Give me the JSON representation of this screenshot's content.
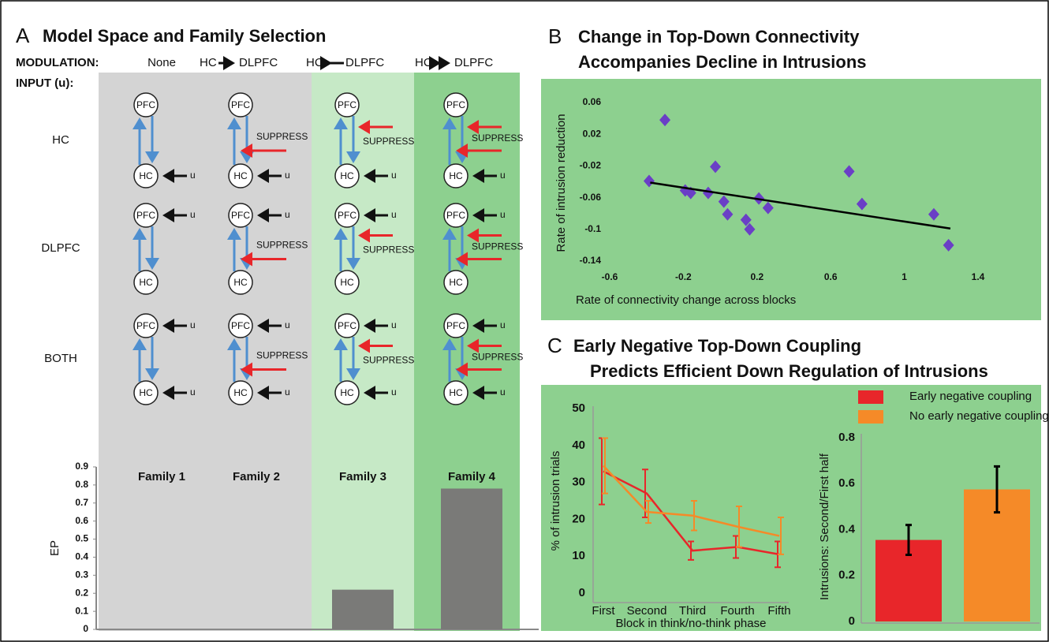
{
  "panel_a": {
    "letter": "A",
    "title": "Model Space and Family Selection",
    "modulation_label": "MODULATION:",
    "modulation": [
      "None",
      {
        "from": "HC",
        "to": "DLPFC",
        "arrow": "right"
      },
      {
        "from": "HC",
        "to": "DLPFC",
        "arrow": "left"
      },
      {
        "from": "HC",
        "to": "DLPFC",
        "arrow": "both"
      }
    ],
    "input_label": "INPUT (u):",
    "inputs": [
      "HC",
      "DLPFC",
      "BOTH"
    ],
    "node_labels": {
      "top": "PFC",
      "bottom": "HC"
    },
    "input_symbol": "u",
    "suppress": "SUPPRESS"
  },
  "panel_b": {
    "letter": "B",
    "title": [
      "Change in Top-Down Connectivity",
      "Accompanies Decline in Intrusions"
    ]
  },
  "panel_c": {
    "letter": "C",
    "title": [
      "Early Negative Top-Down Coupling",
      "Predicts Efficient Down Regulation of Intrusions"
    ]
  },
  "chart_data": [
    {
      "type": "bar",
      "categories": [
        "Family 1",
        "Family 2",
        "Family 3",
        "Family 4"
      ],
      "values": [
        0,
        0,
        0.22,
        0.78
      ],
      "color": "#7a7a78",
      "ylabel": "EP",
      "ylim": [
        0,
        0.9
      ],
      "yticks": [
        0,
        0.1,
        0.2,
        0.3,
        0.4,
        0.5,
        0.6,
        0.7,
        0.8,
        0.9
      ]
    },
    {
      "type": "scatter",
      "xlabel": "Rate of connectivity change across blocks",
      "ylabel": "Rate of intrusion reduction",
      "color": "#6a3fc6",
      "x": [
        -0.386,
        -0.3,
        -0.19,
        -0.16,
        -0.065,
        -0.026,
        0.02,
        0.04,
        0.14,
        0.16,
        0.21,
        0.26,
        0.7,
        0.77,
        1.16,
        1.24
      ],
      "values": [
        -0.039,
        0.038,
        -0.051,
        -0.054,
        -0.054,
        -0.021,
        -0.065,
        -0.081,
        -0.088,
        -0.1,
        -0.061,
        -0.073,
        -0.027,
        -0.068,
        -0.081,
        -0.12
      ],
      "fit": {
        "x": [
          -0.38,
          1.25
        ],
        "values": [
          -0.041,
          -0.099
        ]
      },
      "xlim": [
        -0.6,
        1.4
      ],
      "xticks": [
        -0.6,
        -0.2,
        0.2,
        0.6,
        1,
        1.4
      ],
      "ylim": [
        0.06,
        -0.14
      ],
      "yticks": [
        0.06,
        0.02,
        -0.02,
        -0.06,
        -0.1,
        -0.14
      ]
    },
    {
      "type": "line",
      "xlabel": "Block in think/no-think phase",
      "ylabel": "% of intrusion trials",
      "categories": [
        "First",
        "Second",
        "Third",
        "Fourth",
        "Fifth"
      ],
      "series": [
        {
          "name": "Early negative coupling",
          "color": "#e8262a",
          "values": [
            33,
            27,
            11.5,
            12.5,
            10.5
          ],
          "errors": [
            9,
            6.5,
            2.5,
            3,
            3.5
          ]
        },
        {
          "name": "No early negative coupling",
          "color": "#f58a28",
          "values": [
            34.5,
            22,
            21,
            18,
            15.5
          ],
          "errors": [
            7.5,
            3,
            4,
            5.5,
            5
          ]
        }
      ],
      "ylim": [
        0,
        50
      ],
      "yticks": [
        0,
        10,
        20,
        30,
        40,
        50
      ]
    },
    {
      "type": "errbar",
      "ylabel": "Intrusions: Second/First half",
      "values": [
        0.355,
        0.575
      ],
      "errors": [
        0.065,
        0.1
      ],
      "colors": [
        "#e8262a",
        "#f58a28"
      ],
      "ylim": [
        0,
        0.8
      ],
      "yticks": [
        0,
        0.2,
        0.4,
        0.6,
        0.8
      ]
    }
  ]
}
